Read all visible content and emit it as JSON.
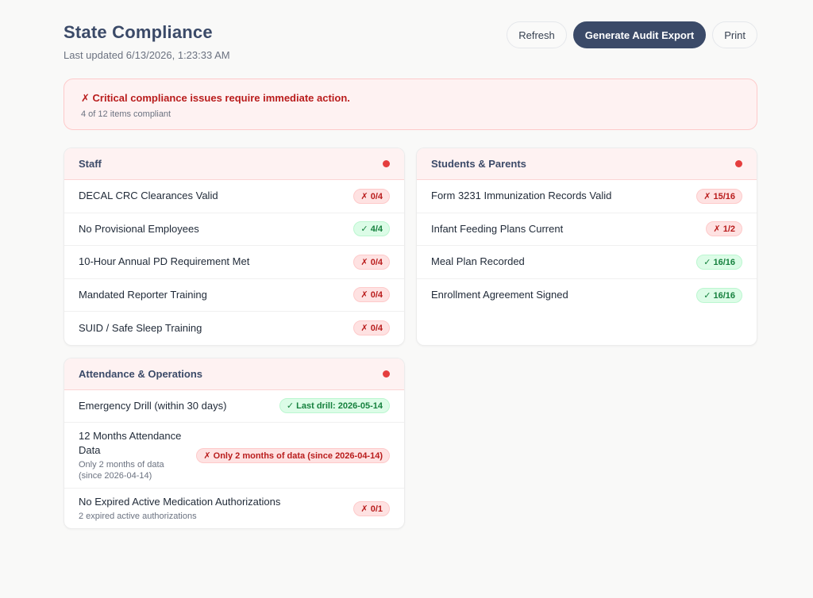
{
  "header": {
    "title": "State Compliance",
    "subtitle": "Last updated 6/13/2026, 1:23:33 AM",
    "buttons": [
      "Refresh",
      "Generate Audit Export",
      "Print"
    ]
  },
  "alert": {
    "title": "✗ Critical compliance issues require immediate action.",
    "subtitle": "4 of 12 items compliant"
  },
  "sections": [
    {
      "title": "Staff",
      "items": [
        {
          "label": "DECAL CRC Clearances Valid",
          "badge": "✗ 0/4",
          "status": "fail"
        },
        {
          "label": "No Provisional Employees",
          "badge": "✓ 4/4",
          "status": "ok"
        },
        {
          "label": "10-Hour Annual PD Requirement Met",
          "badge": "✗ 0/4",
          "status": "fail"
        },
        {
          "label": "Mandated Reporter Training",
          "badge": "✗ 0/4",
          "status": "fail"
        },
        {
          "label": "SUID / Safe Sleep Training",
          "badge": "✗ 0/4",
          "status": "fail"
        }
      ]
    },
    {
      "title": "Students & Parents",
      "items": [
        {
          "label": "Form 3231 Immunization Records Valid",
          "badge": "✗ 15/16",
          "status": "fail"
        },
        {
          "label": "Infant Feeding Plans Current",
          "badge": "✗ 1/2",
          "status": "fail"
        },
        {
          "label": "Meal Plan Recorded",
          "badge": "✓ 16/16",
          "status": "ok"
        },
        {
          "label": "Enrollment Agreement Signed",
          "badge": "✓ 16/16",
          "status": "ok"
        }
      ]
    },
    {
      "title": "Attendance & Operations",
      "items": [
        {
          "label": "Emergency Drill (within 30 days)",
          "badge": "✓ Last drill: 2026-05-14",
          "status": "ok"
        },
        {
          "label": "12 Months Attendance Data",
          "note": "Only 2 months of data (since 2026-04-14)",
          "badge": "✗ Only 2 months of data (since 2026-04-14)",
          "status": "fail"
        },
        {
          "label": "No Expired Active Medication Authorizations",
          "note": "2 expired active authorizations",
          "badge": "✗ 0/1",
          "status": "fail"
        }
      ]
    }
  ]
}
